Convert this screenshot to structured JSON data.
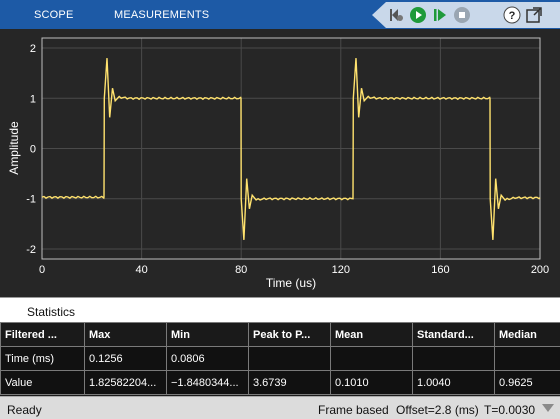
{
  "toolbar": {
    "tabs": [
      "SCOPE",
      "MEASUREMENTS"
    ],
    "tools": [
      "step-back-icon",
      "run-icon",
      "step-forward-icon",
      "stop-icon",
      "help-icon",
      "undock-icon"
    ]
  },
  "colors": {
    "toolbar_bg": "#1d5aa6",
    "plot_bg": "#262626",
    "trace": "#ffe26e",
    "grid": "#4a4a4a"
  },
  "chart_data": {
    "type": "line",
    "xlabel": "Time (us)",
    "ylabel": "Amplitude",
    "xlim": [
      0,
      200
    ],
    "ylim": [
      -2.2,
      2.2
    ],
    "xticks": [
      0,
      40,
      80,
      120,
      160,
      200
    ],
    "yticks": [
      2,
      1,
      0,
      -1,
      -2
    ],
    "grid": true,
    "series": [
      {
        "description_points": [
          [
            0,
            -0.97
          ],
          [
            24.9,
            -0.97
          ],
          [
            25.0,
            1.0
          ],
          [
            26.1,
            1.8
          ],
          [
            27.2,
            0.62
          ],
          [
            28.3,
            1.2
          ],
          [
            29.4,
            0.95
          ],
          [
            31,
            1.02
          ],
          [
            35,
            1.0
          ],
          [
            79.9,
            1.0
          ],
          [
            80.0,
            -1.0
          ],
          [
            81.1,
            -1.82
          ],
          [
            82.2,
            -0.6
          ],
          [
            83.3,
            -1.2
          ],
          [
            84.4,
            -0.93
          ],
          [
            86,
            -1.02
          ],
          [
            90,
            -1.0
          ],
          [
            124.9,
            -1.0
          ],
          [
            125.0,
            1.0
          ],
          [
            126.1,
            1.8
          ],
          [
            127.2,
            0.62
          ],
          [
            128.3,
            1.2
          ],
          [
            129.4,
            0.95
          ],
          [
            131,
            1.02
          ],
          [
            135,
            1.0
          ],
          [
            179.9,
            1.0
          ],
          [
            180.0,
            -1.0
          ],
          [
            181.1,
            -1.82
          ],
          [
            182.2,
            -0.6
          ],
          [
            183.3,
            -1.2
          ],
          [
            184.4,
            -0.93
          ],
          [
            186,
            -1.02
          ],
          [
            190,
            -0.98
          ],
          [
            200,
            -0.98
          ]
        ]
      }
    ]
  },
  "statistics": {
    "title": "Statistics",
    "headers": [
      "Filtered ...",
      "Max",
      "Min",
      "Peak to P...",
      "Mean",
      "Standard...",
      "Median"
    ],
    "rows": [
      [
        "Time (ms)",
        "0.1256",
        "0.0806",
        "",
        "",
        "",
        ""
      ],
      [
        "Value",
        "1.82582204...",
        "−1.8480344...",
        "3.6739",
        "0.1010",
        "1.0040",
        "0.9625"
      ]
    ]
  },
  "status": {
    "ready": "Ready",
    "frame": "Frame based",
    "offset": "Offset=2.8 (ms)",
    "t": "T=0.0030"
  }
}
